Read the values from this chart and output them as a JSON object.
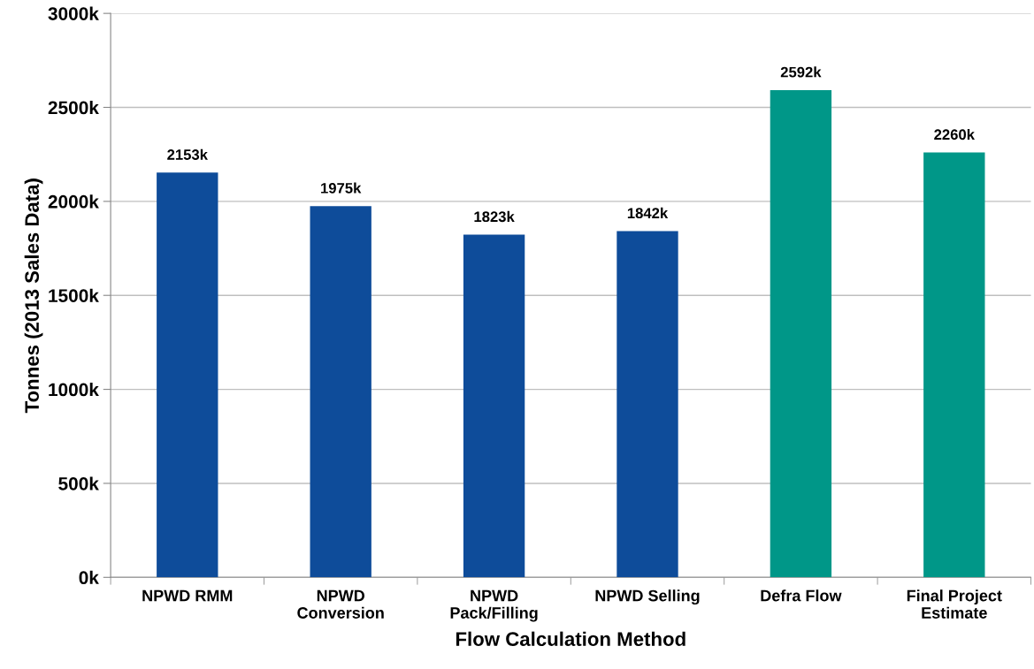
{
  "chart_data": {
    "type": "bar",
    "xlabel": "Flow Calculation Method",
    "ylabel": "Tonnes (2013 Sales Data)",
    "categories": [
      "NPWD RMM",
      "NPWD\nConversion",
      "NPWD\nPack/Filling",
      "NPWD Selling",
      "Defra Flow",
      "Final Project\nEstimate"
    ],
    "values": [
      2153000,
      1975000,
      1823000,
      1842000,
      2592000,
      2260000
    ],
    "colors": [
      "#0e4c9a",
      "#0e4c9a",
      "#0e4c9a",
      "#0e4c9a",
      "#009788",
      "#009788"
    ],
    "value_labels": [
      "2153k",
      "1975k",
      "1823k",
      "1842k",
      "2592k",
      "2260k"
    ],
    "ylim": [
      0,
      3000000
    ],
    "yticks": [
      {
        "value": 0,
        "label": "0k"
      },
      {
        "value": 500000,
        "label": "500k"
      },
      {
        "value": 1000000,
        "label": "1000k"
      },
      {
        "value": 1500000,
        "label": "1500k"
      },
      {
        "value": 2000000,
        "label": "2000k"
      },
      {
        "value": 2500000,
        "label": "2500k"
      },
      {
        "value": 3000000,
        "label": "3000k"
      }
    ],
    "grid": "y"
  }
}
